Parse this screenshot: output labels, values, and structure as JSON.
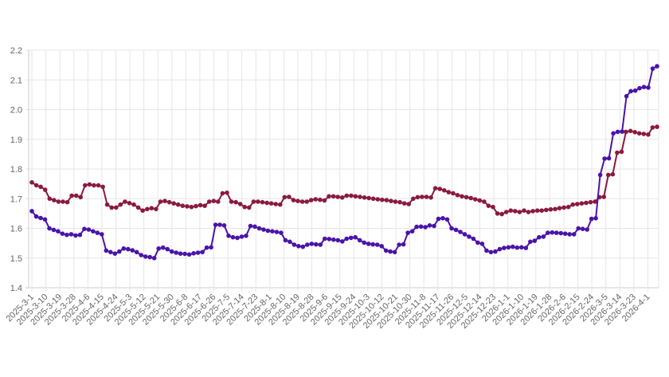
{
  "chart_data": {
    "type": "line",
    "title": "",
    "xlabel": "",
    "ylabel": "",
    "ylim": [
      1.4,
      2.2
    ],
    "yticks": [
      "1.4",
      "1.5",
      "1.6",
      "1.7",
      "1.8",
      "1.9",
      "2.0",
      "2.1",
      "2.2"
    ],
    "grid": true,
    "x_tick_labels": [
      "2025-3-1",
      "2025-3-10",
      "2025-3-19",
      "2025-3-28",
      "2025-4-6",
      "2025-4-15",
      "2025-4-24",
      "2025-5-3",
      "2025-5-12",
      "2025-5-21",
      "2025-5-30",
      "2025-6-8",
      "2025-6-17",
      "2025-6-26",
      "2025-7-5",
      "2025-7-14",
      "2025-7-23",
      "2025-8-1",
      "2025-8-10",
      "2025-8-19",
      "2025-8-28",
      "2025-9-6",
      "2025-9-15",
      "2025-9-24",
      "2025-10-3",
      "2025-10-12",
      "2025-10-21",
      "2025-10-30",
      "2025-11-8",
      "2025-11-17",
      "2025-11-26",
      "2025-12-5",
      "2025-12-14",
      "2025-12-23",
      "2026-1-1",
      "2026-1-10",
      "2026-1-19",
      "2026-1-28",
      "2026-2-6",
      "2026-2-15",
      "2026-2-24",
      "2026-3-5",
      "2026-3-14",
      "2026-3-23",
      "2026-4-1"
    ],
    "series": [
      {
        "color": "#8b1a3e",
        "values": [
          1.755,
          1.745,
          1.74,
          1.73,
          1.7,
          1.695,
          1.69,
          1.69,
          1.688,
          1.71,
          1.71,
          1.705,
          1.745,
          1.748,
          1.745,
          1.745,
          1.74,
          1.68,
          1.67,
          1.67,
          1.68,
          1.69,
          1.685,
          1.68,
          1.67,
          1.66,
          1.665,
          1.668,
          1.665,
          1.69,
          1.692,
          1.688,
          1.684,
          1.68,
          1.676,
          1.674,
          1.672,
          1.675,
          1.678,
          1.676,
          1.69,
          1.692,
          1.69,
          1.718,
          1.72,
          1.69,
          1.688,
          1.682,
          1.672,
          1.67,
          1.69,
          1.69,
          1.688,
          1.686,
          1.684,
          1.682,
          1.68,
          1.705,
          1.706,
          1.695,
          1.692,
          1.69,
          1.69,
          1.695,
          1.698,
          1.696,
          1.694,
          1.708,
          1.708,
          1.706,
          1.704,
          1.71,
          1.71,
          1.708,
          1.706,
          1.704,
          1.702,
          1.7,
          1.698,
          1.696,
          1.695,
          1.692,
          1.69,
          1.688,
          1.684,
          1.682,
          1.7,
          1.705,
          1.706,
          1.706,
          1.704,
          1.735,
          1.733,
          1.728,
          1.722,
          1.718,
          1.712,
          1.708,
          1.705,
          1.702,
          1.698,
          1.694,
          1.69,
          1.676,
          1.672,
          1.65,
          1.648,
          1.655,
          1.66,
          1.658,
          1.655,
          1.66,
          1.655,
          1.658,
          1.66,
          1.66,
          1.662,
          1.664,
          1.665,
          1.668,
          1.67,
          1.672,
          1.68,
          1.682,
          1.684,
          1.686,
          1.688,
          1.69,
          1.705,
          1.706,
          1.78,
          1.782,
          1.855,
          1.858,
          1.925,
          1.928,
          1.924,
          1.92,
          1.918,
          1.916,
          1.94,
          1.942
        ],
        "x_start": 0,
        "x_end": 45
      },
      {
        "color": "#4a14a8",
        "values": [
          1.658,
          1.64,
          1.635,
          1.63,
          1.6,
          1.595,
          1.59,
          1.582,
          1.578,
          1.58,
          1.576,
          1.578,
          1.598,
          1.596,
          1.59,
          1.585,
          1.58,
          1.525,
          1.52,
          1.515,
          1.522,
          1.532,
          1.53,
          1.526,
          1.52,
          1.51,
          1.505,
          1.503,
          1.5,
          1.532,
          1.535,
          1.53,
          1.522,
          1.518,
          1.515,
          1.514,
          1.512,
          1.516,
          1.518,
          1.52,
          1.535,
          1.536,
          1.612,
          1.612,
          1.61,
          1.575,
          1.57,
          1.568,
          1.572,
          1.575,
          1.608,
          1.606,
          1.6,
          1.596,
          1.592,
          1.59,
          1.588,
          1.585,
          1.56,
          1.555,
          1.545,
          1.54,
          1.538,
          1.545,
          1.548,
          1.546,
          1.545,
          1.565,
          1.564,
          1.562,
          1.56,
          1.556,
          1.565,
          1.568,
          1.57,
          1.56,
          1.552,
          1.548,
          1.546,
          1.545,
          1.54,
          1.525,
          1.522,
          1.52,
          1.545,
          1.546,
          1.585,
          1.59,
          1.605,
          1.606,
          1.604,
          1.61,
          1.608,
          1.632,
          1.634,
          1.63,
          1.6,
          1.595,
          1.588,
          1.58,
          1.572,
          1.565,
          1.552,
          1.548,
          1.525,
          1.52,
          1.522,
          1.53,
          1.534,
          1.536,
          1.538,
          1.535,
          1.536,
          1.534,
          1.555,
          1.558,
          1.57,
          1.572,
          1.585,
          1.586,
          1.585,
          1.584,
          1.582,
          1.58,
          1.58,
          1.6,
          1.598,
          1.596,
          1.632,
          1.634,
          1.78,
          1.835,
          1.836,
          1.92,
          1.925,
          1.926,
          2.045,
          2.062,
          2.064,
          2.072,
          2.076,
          2.074,
          2.138,
          2.146
        ],
        "x_start": 0,
        "x_end": 45
      }
    ]
  }
}
